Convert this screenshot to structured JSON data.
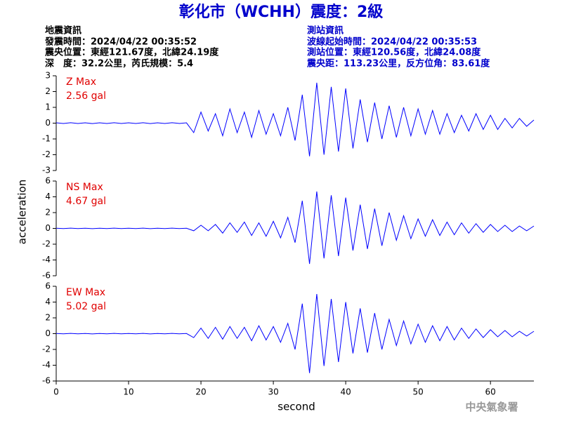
{
  "header": {
    "title": "彰化市（WCHH）震度：2級",
    "event_info": [
      "地震資訊",
      "發震時間：2024/04/22 00:35:52",
      "震央位置：東經121.67度，北緯24.19度",
      "深　度：32.2公里，芮氏規模：5.4"
    ],
    "station_info": [
      "測站資訊",
      "波線起始時間：2024/04/22 00:35:53",
      "測站位置：東經120.56度，北緯24.08度",
      "震央距：113.23公里，反方位角：83.61度"
    ]
  },
  "ylabel": "acceleration",
  "footer": "中央氣象署",
  "chart_data": [
    {
      "type": "line",
      "label": "Z Max",
      "max_label": "2.56 gal",
      "color": "#0000ff",
      "x": [
        0,
        1,
        2,
        3,
        4,
        5,
        6,
        7,
        8,
        9,
        10,
        11,
        12,
        13,
        14,
        15,
        16,
        17,
        18,
        19,
        20,
        21,
        22,
        23,
        24,
        25,
        26,
        27,
        28,
        29,
        30,
        31,
        32,
        33,
        34,
        35,
        36,
        37,
        38,
        39,
        40,
        41,
        42,
        43,
        44,
        45,
        46,
        47,
        48,
        49,
        50,
        51,
        52,
        53,
        54,
        55,
        56,
        57,
        58,
        59,
        60,
        61,
        62,
        63,
        64,
        65,
        66
      ],
      "values": [
        0.02,
        -0.02,
        0.03,
        -0.02,
        0.02,
        -0.03,
        0.02,
        -0.02,
        0.03,
        -0.02,
        0.02,
        -0.02,
        0.03,
        -0.03,
        0.02,
        -0.02,
        0.03,
        -0.02,
        0.02,
        -0.6,
        0.7,
        -0.5,
        0.6,
        -0.8,
        0.9,
        -0.6,
        0.7,
        -0.9,
        0.8,
        -0.7,
        0.6,
        -0.8,
        1.0,
        -1.1,
        1.8,
        -2.1,
        2.56,
        -2.0,
        2.3,
        -1.8,
        2.2,
        -1.6,
        1.5,
        -1.2,
        1.3,
        -1.0,
        1.1,
        -0.9,
        1.0,
        -0.8,
        0.9,
        -0.7,
        0.8,
        -0.7,
        0.6,
        -0.6,
        0.5,
        -0.5,
        0.6,
        -0.4,
        0.5,
        -0.4,
        0.3,
        -0.3,
        0.3,
        -0.2,
        0.2
      ],
      "xlim": [
        0,
        66
      ],
      "ylim": [
        -3,
        3
      ],
      "yticks": [
        -3,
        -2,
        -1,
        0,
        1,
        2,
        3
      ]
    },
    {
      "type": "line",
      "label": "NS Max",
      "max_label": "4.67 gal",
      "color": "#0000ff",
      "x": [
        0,
        1,
        2,
        3,
        4,
        5,
        6,
        7,
        8,
        9,
        10,
        11,
        12,
        13,
        14,
        15,
        16,
        17,
        18,
        19,
        20,
        21,
        22,
        23,
        24,
        25,
        26,
        27,
        28,
        29,
        30,
        31,
        32,
        33,
        34,
        35,
        36,
        37,
        38,
        39,
        40,
        41,
        42,
        43,
        44,
        45,
        46,
        47,
        48,
        49,
        50,
        51,
        52,
        53,
        54,
        55,
        56,
        57,
        58,
        59,
        60,
        61,
        62,
        63,
        64,
        65,
        66
      ],
      "values": [
        0.02,
        -0.02,
        0.03,
        -0.02,
        0.02,
        -0.03,
        0.02,
        -0.02,
        0.03,
        -0.02,
        0.02,
        -0.02,
        0.03,
        -0.03,
        0.02,
        -0.02,
        0.03,
        -0.02,
        0.02,
        -0.3,
        0.4,
        -0.3,
        0.5,
        -0.6,
        0.7,
        -0.5,
        0.8,
        -0.9,
        0.7,
        -1.0,
        0.9,
        -1.2,
        1.4,
        -1.8,
        3.5,
        -4.5,
        4.67,
        -3.8,
        4.2,
        -3.5,
        3.9,
        -2.8,
        3.0,
        -2.6,
        2.5,
        -2.2,
        2.0,
        -1.5,
        1.6,
        -1.3,
        1.2,
        -1.0,
        1.1,
        -0.9,
        0.8,
        -0.8,
        0.7,
        -0.6,
        0.6,
        -0.5,
        0.5,
        -0.4,
        0.4,
        -0.4,
        0.3,
        -0.3,
        0.3
      ],
      "xlim": [
        0,
        66
      ],
      "ylim": [
        -6,
        6
      ],
      "yticks": [
        -6,
        -4,
        -2,
        0,
        2,
        4,
        6
      ]
    },
    {
      "type": "line",
      "label": "EW Max",
      "max_label": "5.02 gal",
      "color": "#0000ff",
      "x": [
        0,
        1,
        2,
        3,
        4,
        5,
        6,
        7,
        8,
        9,
        10,
        11,
        12,
        13,
        14,
        15,
        16,
        17,
        18,
        19,
        20,
        21,
        22,
        23,
        24,
        25,
        26,
        27,
        28,
        29,
        30,
        31,
        32,
        33,
        34,
        35,
        36,
        37,
        38,
        39,
        40,
        41,
        42,
        43,
        44,
        45,
        46,
        47,
        48,
        49,
        50,
        51,
        52,
        53,
        54,
        55,
        56,
        57,
        58,
        59,
        60,
        61,
        62,
        63,
        64,
        65,
        66
      ],
      "values": [
        0.02,
        -0.02,
        0.03,
        -0.02,
        0.02,
        -0.03,
        0.02,
        -0.02,
        0.03,
        -0.02,
        0.02,
        -0.02,
        0.03,
        -0.03,
        0.02,
        -0.02,
        0.03,
        -0.02,
        0.02,
        -0.5,
        0.7,
        -0.6,
        0.8,
        -0.7,
        0.9,
        -0.6,
        0.8,
        -0.9,
        1.0,
        -0.8,
        0.9,
        -1.1,
        1.3,
        -2.0,
        3.8,
        -5.0,
        5.02,
        -4.1,
        4.4,
        -3.6,
        4.0,
        -2.5,
        3.2,
        -2.4,
        2.6,
        -2.0,
        1.8,
        -1.5,
        1.6,
        -1.3,
        1.2,
        -1.1,
        1.0,
        -0.9,
        0.9,
        -0.8,
        0.7,
        -0.6,
        0.6,
        -0.5,
        0.5,
        -0.4,
        0.4,
        -0.4,
        0.3,
        -0.3,
        0.3
      ],
      "xlim": [
        0,
        66
      ],
      "ylim": [
        -6,
        6
      ],
      "yticks": [
        -6,
        -4,
        -2,
        0,
        2,
        4,
        6
      ],
      "xticks": [
        0,
        10,
        20,
        30,
        40,
        50,
        60
      ],
      "xlabel": "second"
    }
  ]
}
